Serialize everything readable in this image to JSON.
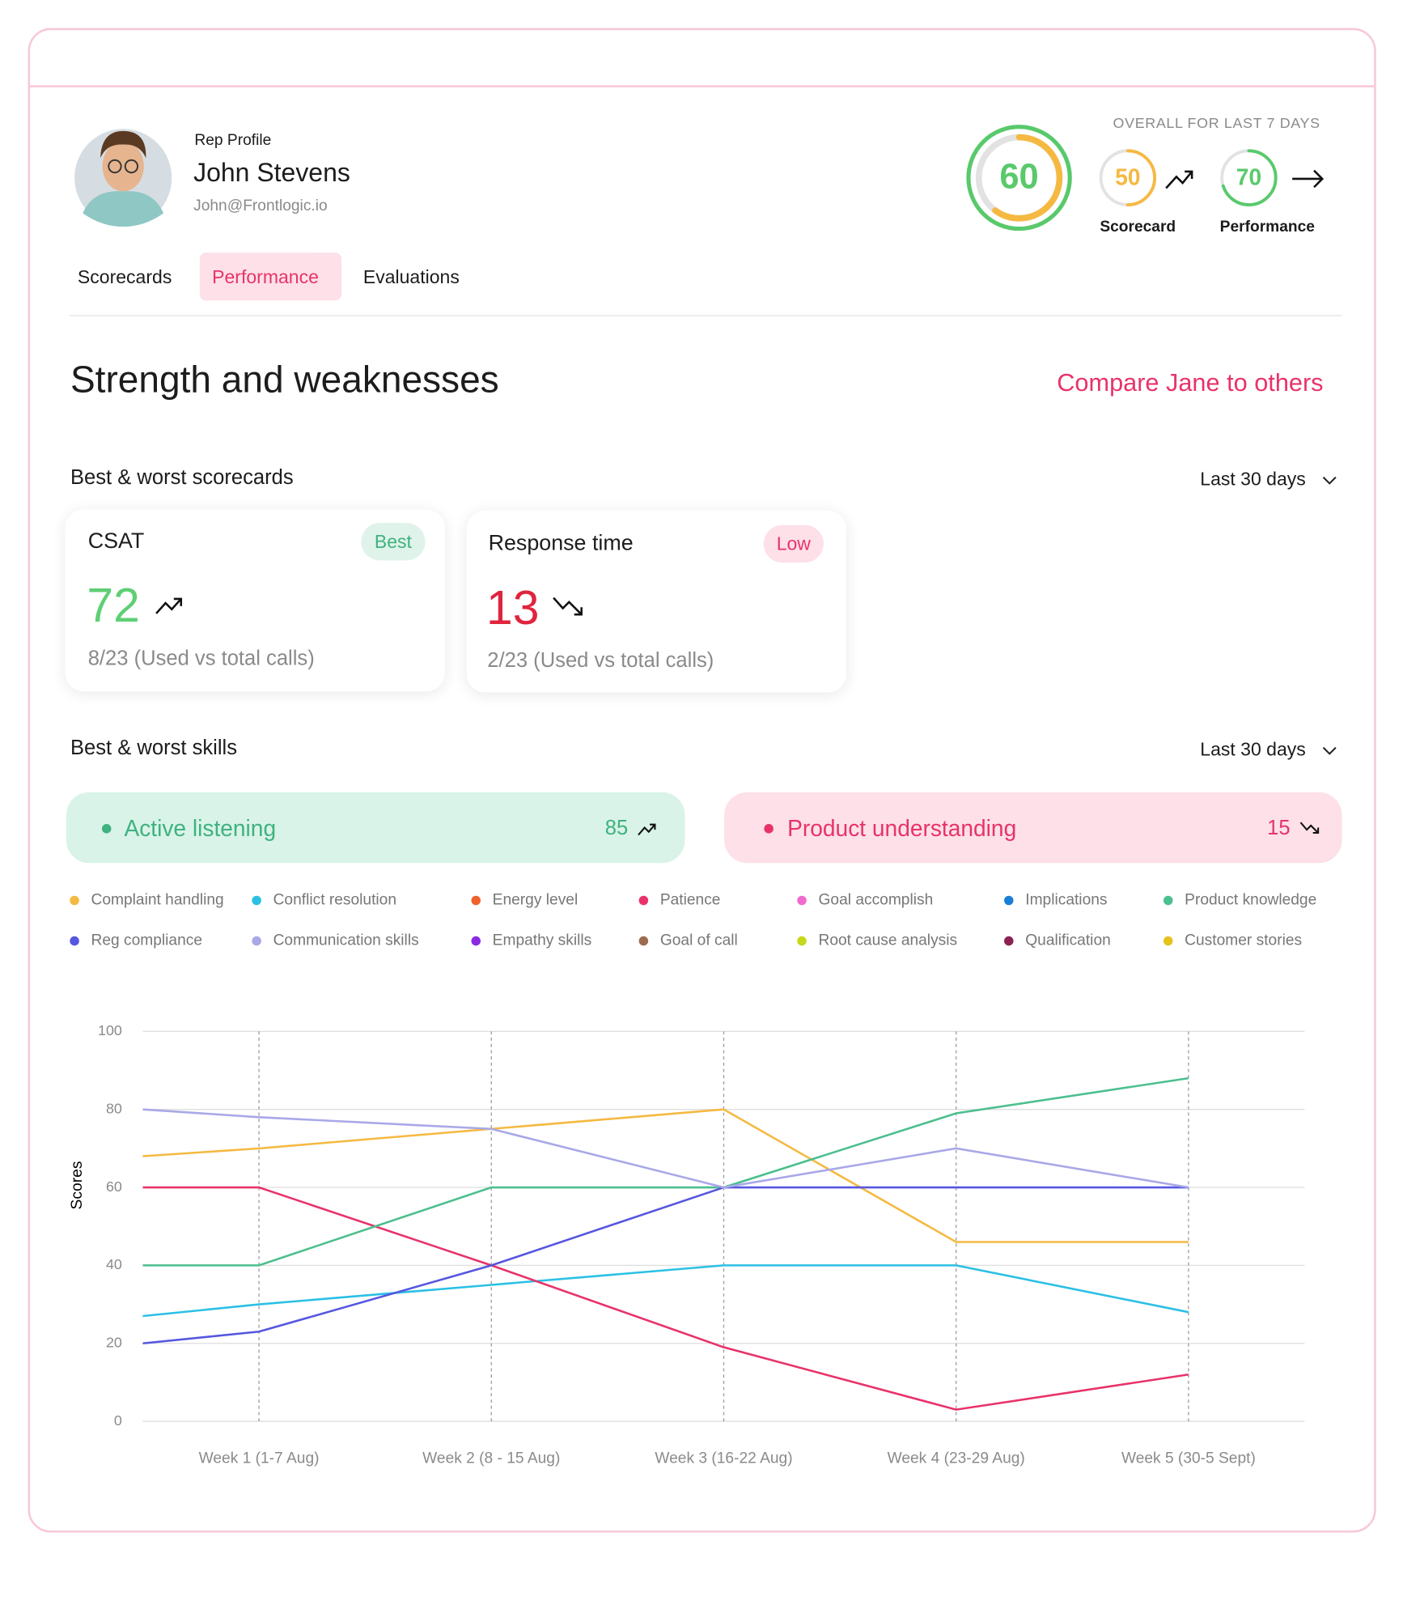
{
  "profile": {
    "label": "Rep Profile",
    "name": "John Stevens",
    "email": "John@Frontlogic.io"
  },
  "scores": {
    "title": "OVERALL FOR LAST 7 DAYS",
    "overall": 60,
    "scorecard": {
      "value": 50,
      "label": "Scorecard"
    },
    "performance": {
      "value": 70,
      "label": "Performance"
    }
  },
  "tabs": [
    "Scorecards",
    "Performance",
    "Evaluations"
  ],
  "title": "Strength and weaknesses",
  "compare_link": "Compare Jane to others",
  "scorecards": {
    "heading": "Best & worst scorecards",
    "period": "Last 30 days",
    "cards": [
      {
        "name": "CSAT",
        "badge": "Best",
        "value": 72,
        "detail": "8/23 (Used vs total calls)"
      },
      {
        "name": "Response time",
        "badge": "Low",
        "value": 13,
        "detail": "2/23 (Used vs total calls)"
      }
    ]
  },
  "skills": {
    "heading": "Best & worst skills",
    "period": "Last 30 days",
    "best": {
      "name": "Active listening",
      "value": 85
    },
    "worst": {
      "name": "Product understanding",
      "value": 15
    }
  },
  "chart_data": {
    "type": "line",
    "y_label": "Scores",
    "categories": [
      null,
      "Week 1 (1-7 Aug)",
      "Week 2 (8 - 15 Aug)",
      "Week 3 (16-22 Aug)",
      "Week 4 (23-29 Aug)",
      "Week 5 (30-5 Sept)"
    ],
    "ylim": [
      0,
      100
    ],
    "yticks": [
      0,
      20,
      40,
      60,
      80,
      100
    ],
    "grid": true,
    "series": [
      {
        "name": "Complaint handling",
        "color": "#f5b942",
        "values": [
          68,
          70,
          75,
          80,
          46,
          46
        ]
      },
      {
        "name": "Conflict resolution",
        "color": "#2bc0e4",
        "values": [
          27,
          30,
          35,
          40,
          40,
          28
        ]
      },
      {
        "name": "Energy level",
        "color": "#f0622d",
        "values": [
          null,
          null,
          null,
          null,
          null,
          null
        ]
      },
      {
        "name": "Patience",
        "color": "#e8336a",
        "values": [
          60,
          60,
          40,
          19,
          3,
          12
        ]
      },
      {
        "name": "Goal accomplish",
        "color": "#f06bd0",
        "values": [
          null,
          null,
          null,
          null,
          null,
          null
        ]
      },
      {
        "name": "Implications",
        "color": "#1a7fd6",
        "values": [
          null,
          null,
          null,
          null,
          null,
          null
        ]
      },
      {
        "name": "Product knowledge",
        "color": "#4cbf8e",
        "values": [
          40,
          40,
          60,
          60,
          79,
          88
        ]
      },
      {
        "name": "Reg compliance",
        "color": "#5656e0",
        "values": [
          20,
          23,
          40,
          60,
          60,
          60
        ]
      },
      {
        "name": "Communication skills",
        "color": "#a9a8e8",
        "values": [
          80,
          78,
          75,
          60,
          70,
          60
        ]
      },
      {
        "name": "Empathy skills",
        "color": "#8a2be2",
        "values": [
          null,
          null,
          null,
          null,
          null,
          null
        ]
      },
      {
        "name": "Goal of call",
        "color": "#9c6b4e",
        "values": [
          null,
          null,
          null,
          null,
          null,
          null
        ]
      },
      {
        "name": "Root cause analysis",
        "color": "#c5d81a",
        "values": [
          null,
          null,
          null,
          null,
          null,
          null
        ]
      },
      {
        "name": "Qualification",
        "color": "#8b2252",
        "values": [
          null,
          null,
          null,
          null,
          null,
          null
        ]
      },
      {
        "name": "Customer stories",
        "color": "#e6c21a",
        "values": [
          null,
          null,
          null,
          null,
          null,
          null
        ]
      }
    ]
  }
}
